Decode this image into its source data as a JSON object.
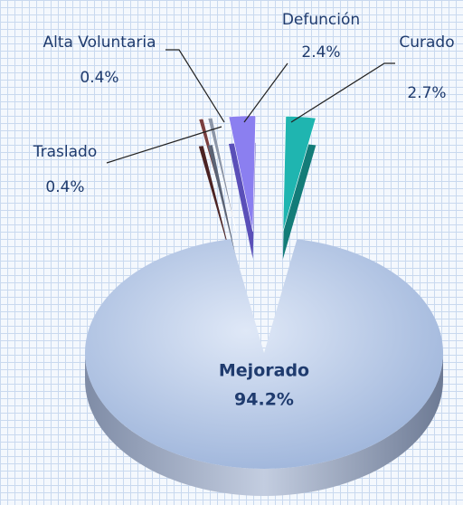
{
  "chart_data": {
    "type": "pie",
    "categories": [
      "Traslado",
      "Alta Voluntaria",
      "Defunción",
      "Curado",
      "Mejorado"
    ],
    "values": [
      0.4,
      0.4,
      2.4,
      2.7,
      94.2
    ],
    "value_labels": [
      "0.4%",
      "0.4%",
      "2.4%",
      "2.7%",
      "94.2%"
    ],
    "colors": [
      "#7a3f3f",
      "#8c96a8",
      "#8b7ff0",
      "#1fb5b0",
      "#aabfe2"
    ]
  }
}
